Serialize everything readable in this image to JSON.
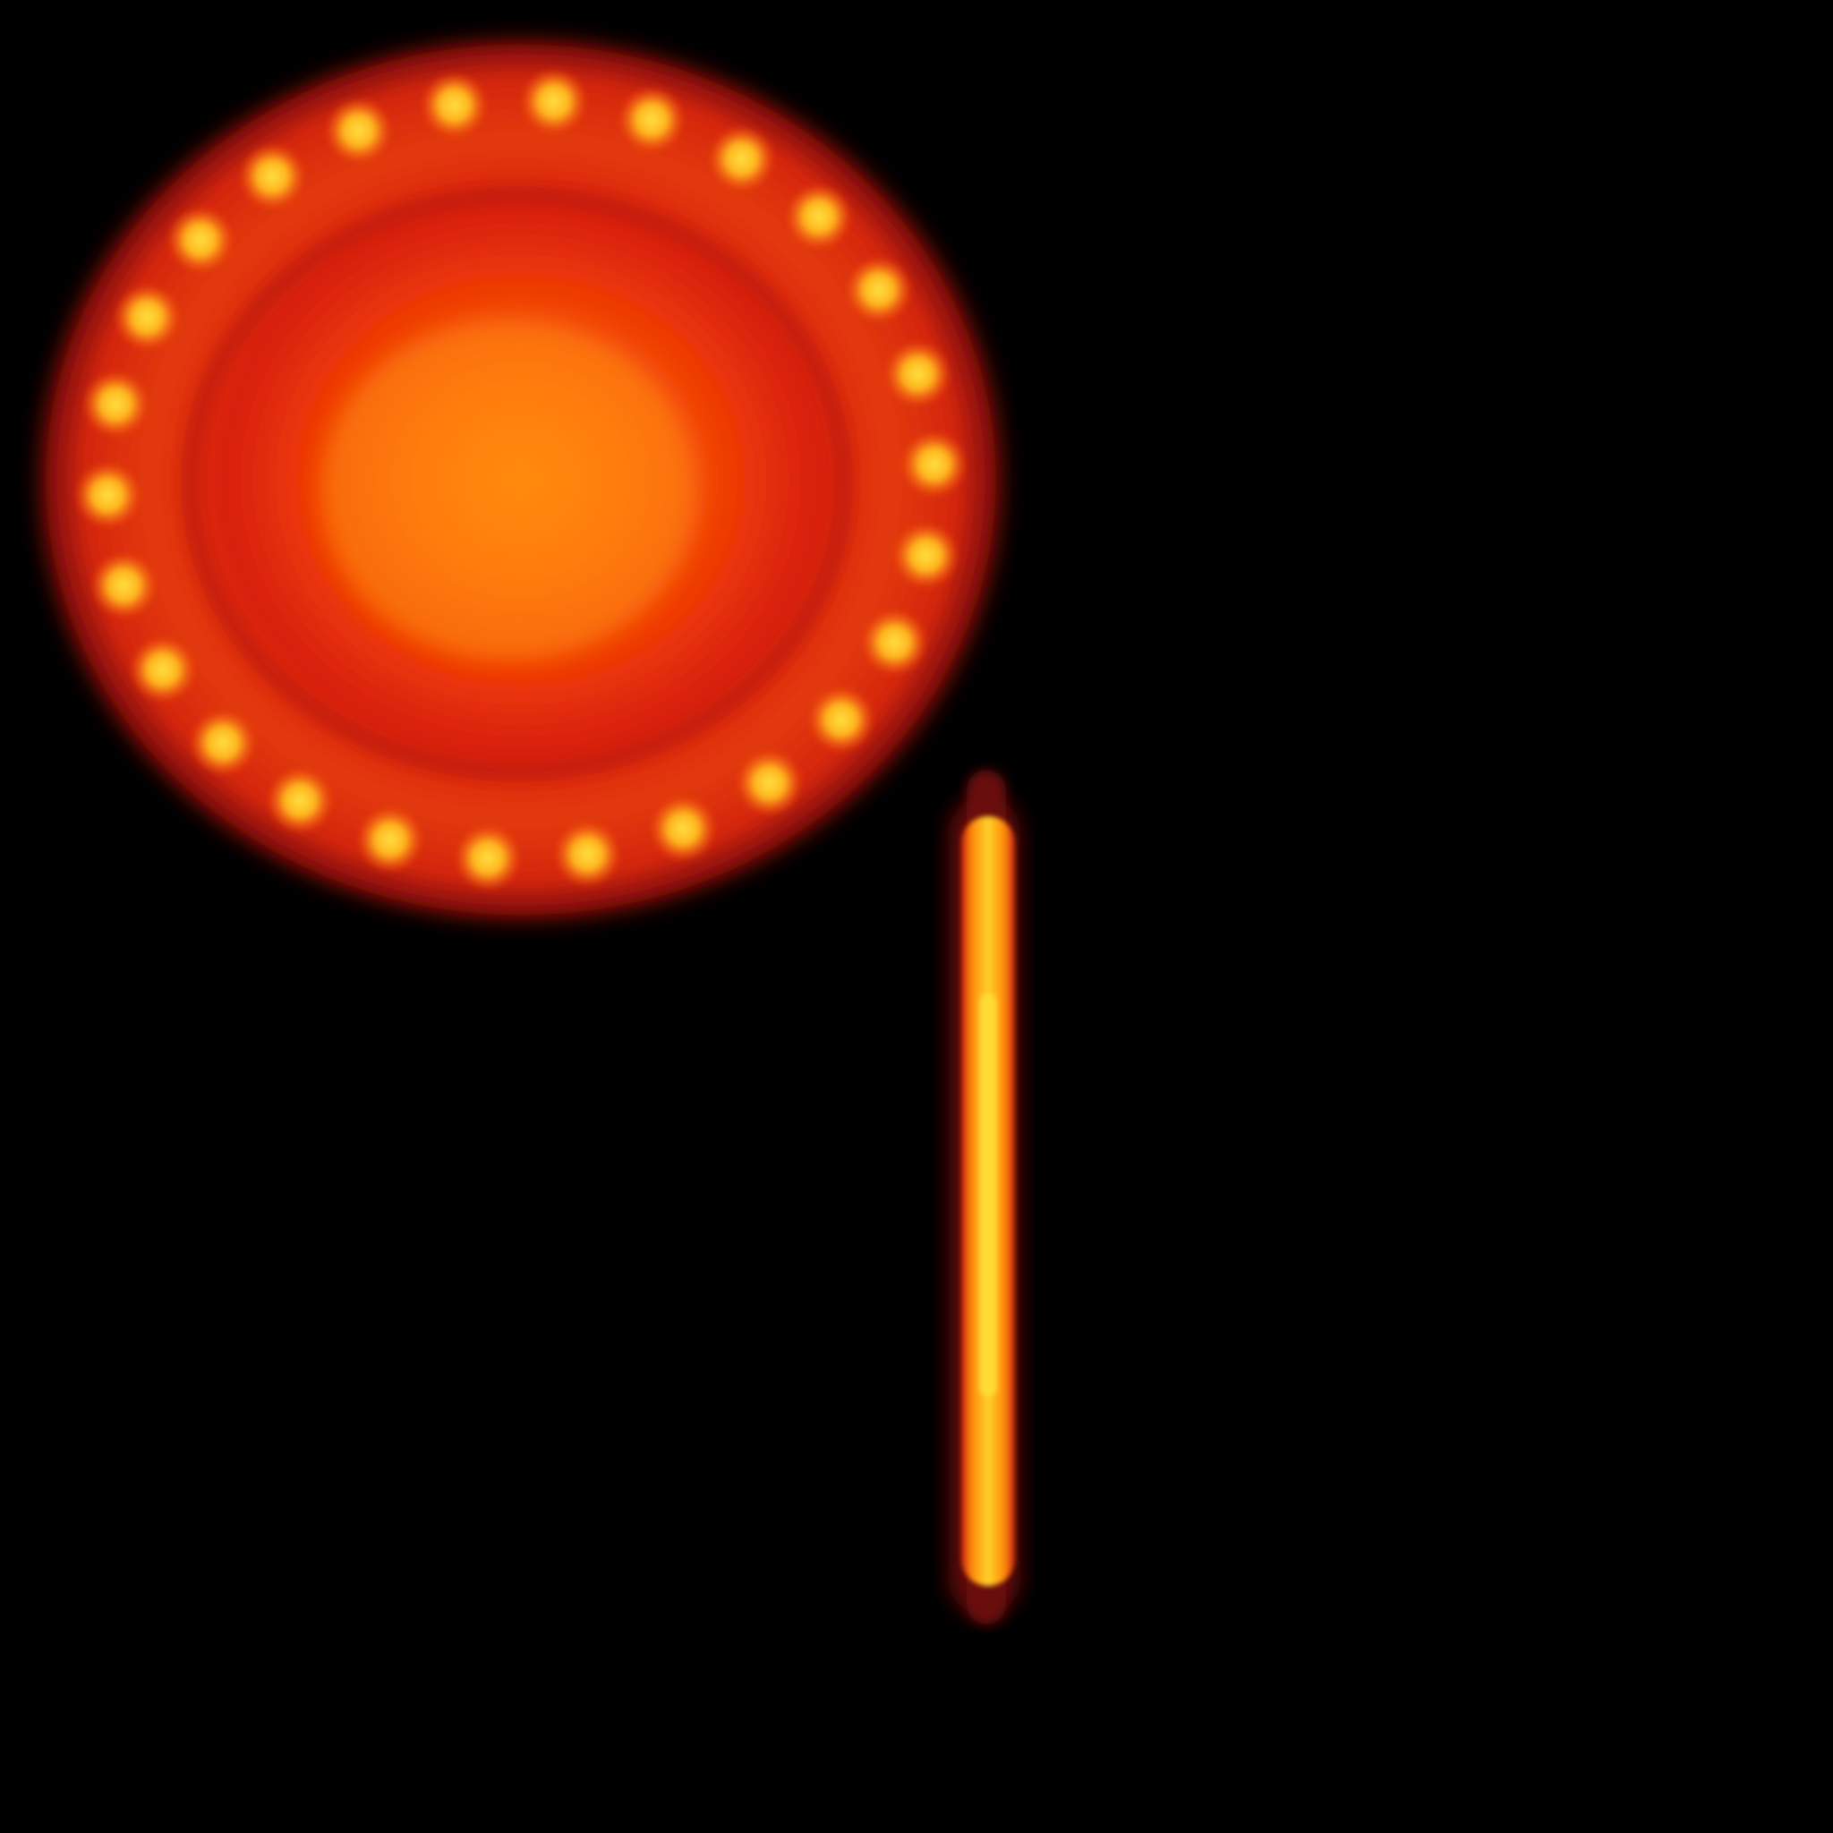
{
  "scene": {
    "background_color": "#000000",
    "objects": [
      {
        "kind": "circular-glow-disc",
        "icon": "ring-light-icon",
        "led_count": 26,
        "colors": {
          "core": "#ff8a0a",
          "body": "#e83008",
          "rim": "#c81a0a",
          "led": "#ffd23a"
        }
      },
      {
        "kind": "vertical-light-bar",
        "icon": "light-tube-icon",
        "colors": {
          "core": "#ffe23a",
          "body": "#ff9a0a",
          "edge": "#d8300a",
          "cap": "#6a0a10"
        }
      }
    ]
  }
}
